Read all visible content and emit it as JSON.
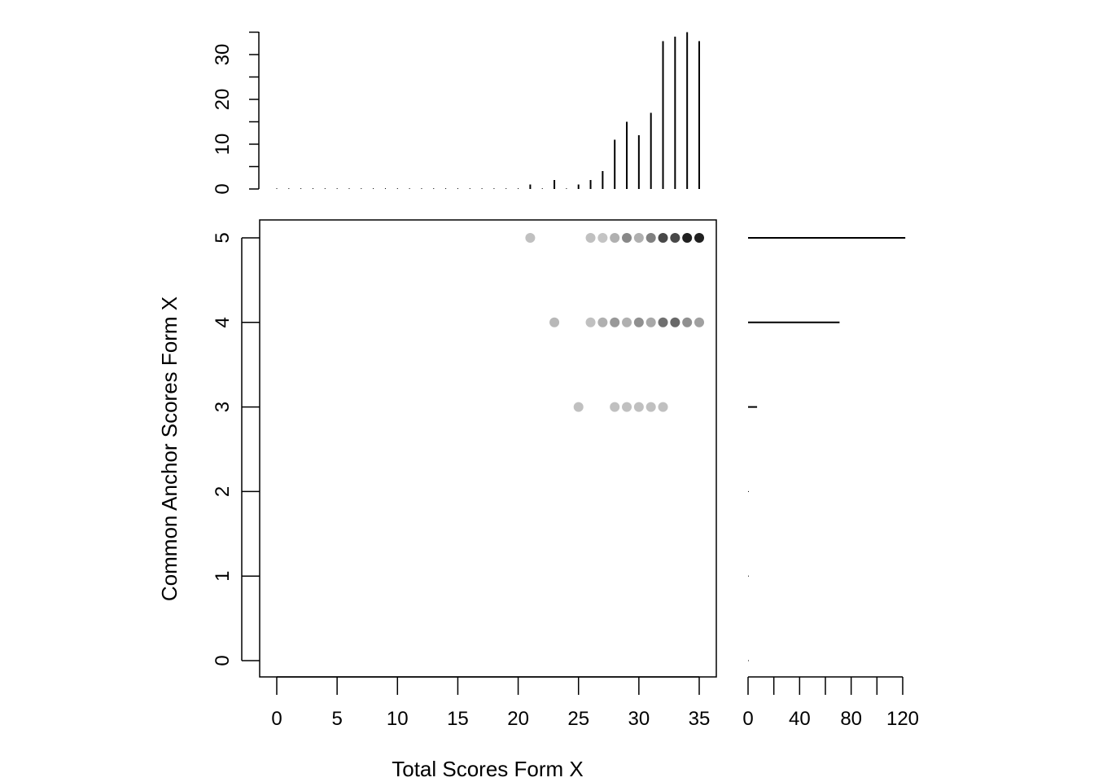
{
  "chart_data": {
    "type": "scatter",
    "xlabel": "Total Scores Form X",
    "ylabel": "Common Anchor Scores Form X",
    "xlim": [
      0,
      35
    ],
    "ylim": [
      0,
      5
    ],
    "x_ticks": [
      "0",
      "5",
      "10",
      "15",
      "20",
      "25",
      "30",
      "35"
    ],
    "y_ticks": [
      "0",
      "1",
      "2",
      "3",
      "4",
      "5"
    ],
    "points": [
      {
        "x": 21,
        "y": 5,
        "color": "#c0c0c0"
      },
      {
        "x": 26,
        "y": 5,
        "color": "#c0c0c0"
      },
      {
        "x": 27,
        "y": 5,
        "color": "#c4c4c4"
      },
      {
        "x": 28,
        "y": 5,
        "color": "#b0b0b0"
      },
      {
        "x": 29,
        "y": 5,
        "color": "#888888"
      },
      {
        "x": 30,
        "y": 5,
        "color": "#b0b0b0"
      },
      {
        "x": 31,
        "y": 5,
        "color": "#808080"
      },
      {
        "x": 32,
        "y": 5,
        "color": "#484848"
      },
      {
        "x": 33,
        "y": 5,
        "color": "#484848"
      },
      {
        "x": 34,
        "y": 5,
        "color": "#202020"
      },
      {
        "x": 35,
        "y": 5,
        "color": "#202020"
      },
      {
        "x": 23,
        "y": 4,
        "color": "#b8b8b8"
      },
      {
        "x": 26,
        "y": 4,
        "color": "#c0c0c0"
      },
      {
        "x": 27,
        "y": 4,
        "color": "#b0b0b0"
      },
      {
        "x": 28,
        "y": 4,
        "color": "#989898"
      },
      {
        "x": 29,
        "y": 4,
        "color": "#b0b0b0"
      },
      {
        "x": 30,
        "y": 4,
        "color": "#909090"
      },
      {
        "x": 31,
        "y": 4,
        "color": "#a8a8a8"
      },
      {
        "x": 32,
        "y": 4,
        "color": "#707070"
      },
      {
        "x": 33,
        "y": 4,
        "color": "#686868"
      },
      {
        "x": 34,
        "y": 4,
        "color": "#909090"
      },
      {
        "x": 35,
        "y": 4,
        "color": "#a0a0a0"
      },
      {
        "x": 25,
        "y": 3,
        "color": "#c0c0c0"
      },
      {
        "x": 28,
        "y": 3,
        "color": "#c0c0c0"
      },
      {
        "x": 29,
        "y": 3,
        "color": "#c0c0c0"
      },
      {
        "x": 30,
        "y": 3,
        "color": "#c0c0c0"
      },
      {
        "x": 31,
        "y": 3,
        "color": "#c0c0c0"
      },
      {
        "x": 32,
        "y": 3,
        "color": "#c0c0c0"
      }
    ],
    "top_histogram": {
      "x": [
        21,
        23,
        25,
        26,
        27,
        28,
        29,
        30,
        31,
        32,
        33,
        34,
        35
      ],
      "counts": [
        1,
        2,
        1,
        2,
        4,
        11,
        15,
        12,
        17,
        33,
        34,
        35,
        33
      ],
      "ylim": [
        0,
        35
      ],
      "ticks": [
        "0",
        "10",
        "20",
        "30"
      ]
    },
    "right_histogram": {
      "y": [
        3,
        4,
        5
      ],
      "counts": [
        7,
        71,
        122
      ],
      "xlim": [
        0,
        120
      ],
      "ticks": [
        "0",
        "40",
        "80",
        "120"
      ]
    }
  }
}
